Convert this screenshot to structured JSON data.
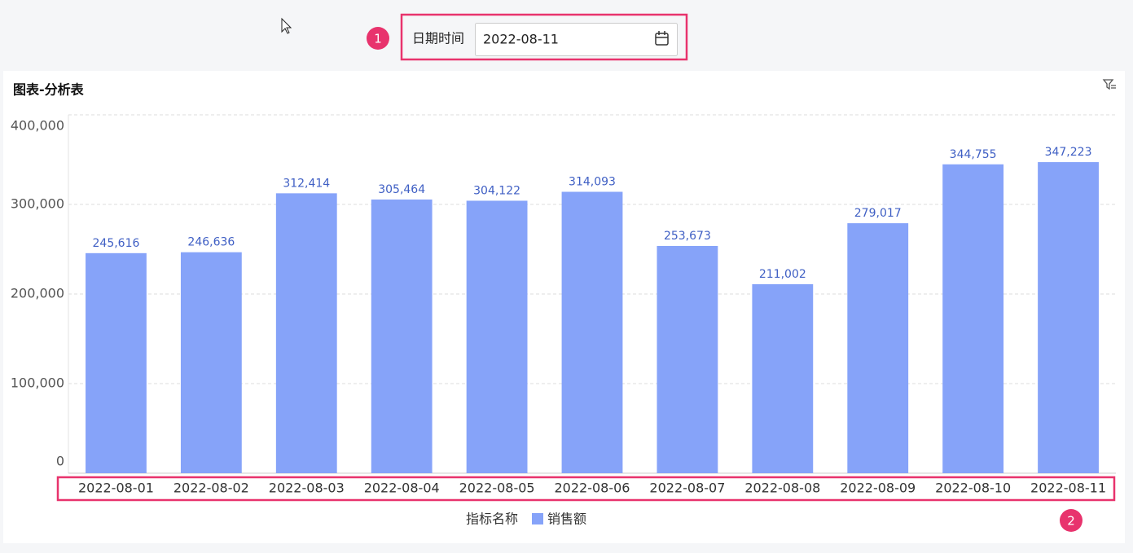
{
  "filter": {
    "marker": "1",
    "label": "日期时间",
    "value": "2022-08-11"
  },
  "card_title": "图表-分析表",
  "axis_marker": "2",
  "chart_data": {
    "type": "bar",
    "categories": [
      "2022-08-01",
      "2022-08-02",
      "2022-08-03",
      "2022-08-04",
      "2022-08-05",
      "2022-08-06",
      "2022-08-07",
      "2022-08-08",
      "2022-08-09",
      "2022-08-10",
      "2022-08-11"
    ],
    "series": [
      {
        "name": "销售额",
        "color": "#86a3f9",
        "values": [
          245616,
          246636,
          312414,
          305464,
          304122,
          314093,
          253673,
          211002,
          279017,
          344755,
          347223
        ],
        "value_labels": [
          "245,616",
          "246,636",
          "312,414",
          "305,464",
          "304,122",
          "314,093",
          "253,673",
          "211,002",
          "279,017",
          "344,755",
          "347,223"
        ]
      }
    ],
    "legend_title": "指标名称",
    "ylim": [
      0,
      400000
    ],
    "yticks": [
      0,
      {
        "value": 100000,
        "label": "100,000"
      },
      {
        "value": 200000,
        "label": "200,000"
      },
      {
        "value": 300000,
        "label": "300,000"
      },
      {
        "value": 400000,
        "label": "400,000"
      }
    ],
    "grid": true
  }
}
